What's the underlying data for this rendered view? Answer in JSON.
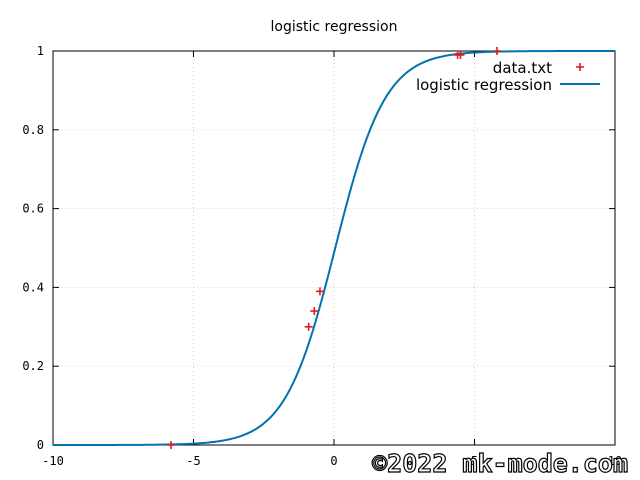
{
  "chart_data": {
    "type": "line",
    "title": "logistic regression",
    "xlabel": "",
    "ylabel": "",
    "xlim": [
      -10,
      10
    ],
    "ylim": [
      0,
      1
    ],
    "x_ticks": [
      -10,
      -5,
      0,
      5,
      10
    ],
    "x_tick_labels": [
      "-10",
      "-5",
      "0",
      "5",
      "10"
    ],
    "y_ticks": [
      0,
      0.2,
      0.4,
      0.6,
      0.8,
      1
    ],
    "y_tick_labels": [
      "0",
      "0.2",
      "0.4",
      "0.6",
      "0.8",
      "1"
    ],
    "grid": true,
    "legend_position": "top-right",
    "series": [
      {
        "name": "data.txt",
        "kind": "points",
        "marker": "plus",
        "color": "#e41a1c",
        "x": [
          -5.8,
          -0.9,
          -0.7,
          -0.5,
          4.4,
          4.5,
          5.8
        ],
        "y": [
          0.0,
          0.3,
          0.34,
          0.39,
          0.99,
          0.99,
          1.0
        ]
      },
      {
        "name": "logistic regression",
        "kind": "line",
        "color": "#0072b2",
        "model": {
          "a": 1.12,
          "b": -0.05
        }
      }
    ]
  },
  "watermark": "©2022 mk-mode.com"
}
